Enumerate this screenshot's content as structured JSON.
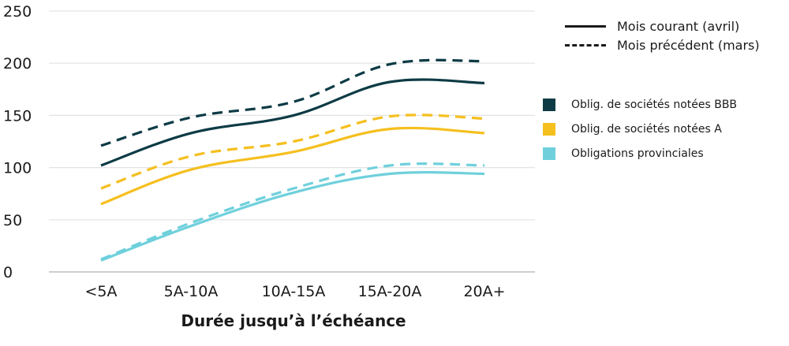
{
  "chart_data": {
    "type": "line",
    "categories": [
      "<5A",
      "5A-10A",
      "10A-15A",
      "15A-20A",
      "20A+"
    ],
    "xlabel": "Durée jusqu’à l’échéance",
    "ylabel": "",
    "ylim": [
      0,
      250
    ],
    "yticks": [
      0,
      50,
      100,
      150,
      200,
      250
    ],
    "grid": true,
    "line_styles": [
      {
        "label": "Mois courant (avril)",
        "style": "solid"
      },
      {
        "label": "Mois précédent (mars)",
        "style": "dashed"
      }
    ],
    "groups": [
      {
        "label": "Oblig. de sociétés notées BBB",
        "color": "#0d3b45"
      },
      {
        "label": "Oblig. de sociétés notées A",
        "color": "#f5bf1e"
      },
      {
        "label": "Obligations provinciales",
        "color": "#6fd0dc"
      }
    ],
    "series": [
      {
        "group": 0,
        "style": "solid",
        "color": "#0d3b45",
        "values": [
          102,
          133,
          150,
          182,
          181
        ]
      },
      {
        "group": 0,
        "style": "dashed",
        "color": "#0d3b45",
        "values": [
          121,
          148,
          163,
          199,
          202
        ]
      },
      {
        "group": 1,
        "style": "solid",
        "color": "#f5bf1e",
        "values": [
          65,
          98,
          115,
          137,
          133
        ]
      },
      {
        "group": 1,
        "style": "dashed",
        "color": "#f5bf1e",
        "values": [
          80,
          111,
          125,
          149,
          147
        ]
      },
      {
        "group": 2,
        "style": "solid",
        "color": "#6fd0dc",
        "values": [
          11,
          44,
          76,
          94,
          94
        ]
      },
      {
        "group": 2,
        "style": "dashed",
        "color": "#6fd0dc",
        "values": [
          12,
          47,
          80,
          102,
          102
        ]
      }
    ]
  }
}
